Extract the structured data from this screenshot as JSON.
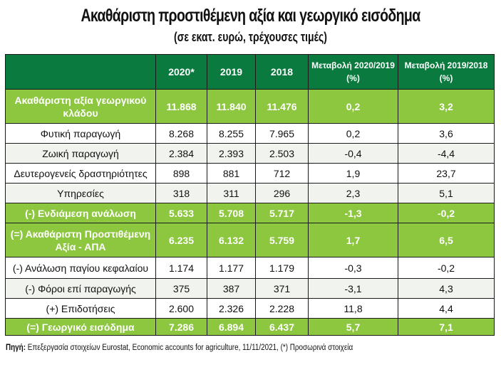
{
  "title": "Ακαθάριστη προστιθέμενη αξία και γεωργικό εισόδημα",
  "subtitle": "(σε εκατ. ευρώ, τρέχουσες τιμές)",
  "table": {
    "headers": [
      "",
      "2020*",
      "2019",
      "2018",
      "Μεταβολή 2020/2019 (%)",
      "Μεταβολή 2019/2018 (%)"
    ],
    "rows": [
      {
        "style": "hl",
        "cells": [
          "Ακαθάριστη αξία γεωργικού κλάδου",
          "11.868",
          "11.840",
          "11.476",
          "0,2",
          "3,2"
        ]
      },
      {
        "style": "normal",
        "cells": [
          "Φυτική παραγωγή",
          "8.268",
          "8.255",
          "7.965",
          "0,2",
          "3,6"
        ]
      },
      {
        "style": "alt",
        "cells": [
          "Ζωική παραγωγή",
          "2.384",
          "2.393",
          "2.503",
          "-0,4",
          "-4,4"
        ]
      },
      {
        "style": "normal",
        "cells": [
          "Δευτερογενείς δραστηριότητες",
          "898",
          "881",
          "712",
          "1,9",
          "23,7"
        ]
      },
      {
        "style": "alt",
        "cells": [
          "Υπηρεσίες",
          "318",
          "311",
          "296",
          "2,3",
          "5,1"
        ]
      },
      {
        "style": "hl",
        "cells": [
          "(-) Ενδιάμεση ανάλωση",
          "5.633",
          "5.708",
          "5.717",
          "-1,3",
          "-0,2"
        ]
      },
      {
        "style": "hl",
        "cells": [
          "(=) Ακαθάριστη Προστιθέμενη Αξία - ΑΠΑ",
          "6.235",
          "6.132",
          "5.759",
          "1,7",
          "6,5"
        ]
      },
      {
        "style": "normal",
        "cells": [
          "(-) Ανάλωση παγίου κεφαλαίου",
          "1.174",
          "1.177",
          "1.179",
          "-0,3",
          "-0,2"
        ]
      },
      {
        "style": "alt",
        "cells": [
          "(-) Φόροι επί παραγωγής",
          "375",
          "387",
          "371",
          "-3,1",
          "4,3"
        ]
      },
      {
        "style": "normal",
        "cells": [
          "(+) Επιδοτήσεις",
          "2.600",
          "2.326",
          "2.228",
          "11,8",
          "4,4"
        ]
      },
      {
        "style": "hl",
        "cells": [
          "(=) Γεωργικό εισόδημα",
          "7.286",
          "6.894",
          "6.437",
          "5,7",
          "7,1"
        ]
      }
    ]
  },
  "footer": {
    "label": "Πηγή:",
    "text": " Επεξεργασία στοιχείων Eurostat, Economic accounts for agriculture, 11/11/2021, (*) Προσωρινά στοιχεία"
  },
  "colors": {
    "header": "#0a7a3e",
    "highlight": "#8dc63f"
  }
}
